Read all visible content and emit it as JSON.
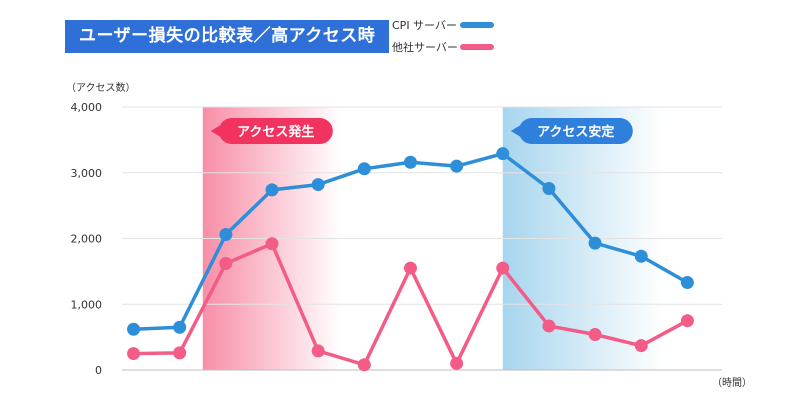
{
  "title": "ユーザー損失の比較表／高アクセス時",
  "colors": {
    "cpi": "#2e8ed8",
    "other": "#f25c86",
    "title_bg": "#2f6fd8",
    "alert": "#f2325f",
    "stable": "#2f7fdc"
  },
  "legend": [
    {
      "label": "CPI サーバー",
      "color": "#2e8ed8"
    },
    {
      "label": "他社サーバー",
      "color": "#f25c86"
    }
  ],
  "chart_data": {
    "type": "line",
    "title": "ユーザー損失の比較表／高アクセス時",
    "ylabel": "（アクセス数）",
    "xlabel": "（時間）",
    "ylim": [
      0,
      4000
    ],
    "yticks": [
      {
        "value": 0,
        "label": "0"
      },
      {
        "value": 1000,
        "label": "1,000"
      },
      {
        "value": 2000,
        "label": "2,000"
      },
      {
        "value": 3000,
        "label": "3,000"
      },
      {
        "value": 4000,
        "label": "4,000"
      }
    ],
    "x": [
      1,
      2,
      3,
      4,
      5,
      6,
      7,
      8,
      9,
      10,
      11,
      12,
      13
    ],
    "xlim": [
      0.75,
      13.75
    ],
    "series": [
      {
        "name": "CPI サーバー",
        "color": "#2e8ed8",
        "values": [
          620,
          650,
          2060,
          2740,
          2820,
          3060,
          3160,
          3100,
          3290,
          2760,
          1930,
          1730,
          1330
        ]
      },
      {
        "name": "他社サーバー",
        "color": "#f25c86",
        "values": [
          250,
          260,
          1620,
          1920,
          290,
          80,
          1550,
          100,
          1550,
          670,
          540,
          370,
          750
        ]
      }
    ],
    "annotations": [
      {
        "text": "アクセス発生",
        "x_start": 2.5,
        "x_end": 5.5,
        "color": "#f2325f"
      },
      {
        "text": "アクセス安定",
        "x_start": 9.0,
        "x_end": 12.5,
        "color": "#2f7fdc"
      }
    ],
    "grid": true,
    "legend_position": "top-center"
  }
}
